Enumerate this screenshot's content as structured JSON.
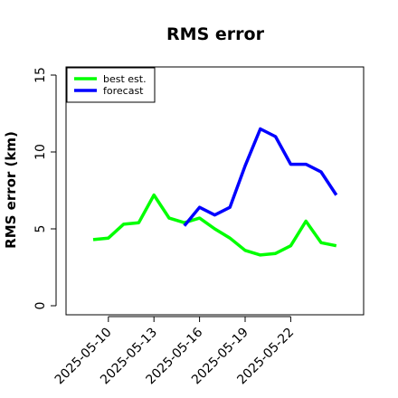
{
  "chart_data": {
    "type": "line",
    "title": "RMS error",
    "xlabel": "",
    "ylabel": "RMS error (km)",
    "x": [
      "2025-05-09",
      "2025-05-10",
      "2025-05-11",
      "2025-05-12",
      "2025-05-13",
      "2025-05-14",
      "2025-05-15",
      "2025-05-16",
      "2025-05-17",
      "2025-05-18",
      "2025-05-19",
      "2025-05-20",
      "2025-05-21",
      "2025-05-22",
      "2025-05-23",
      "2025-05-24",
      "2025-05-25"
    ],
    "x_tick_labels": [
      "2025-05-10",
      "2025-05-13",
      "2025-05-16",
      "2025-05-19",
      "2025-05-22"
    ],
    "ylim": [
      0,
      15
    ],
    "y_ticks": [
      0,
      5,
      10,
      15
    ],
    "grid": false,
    "legend_position": "top-left",
    "series": [
      {
        "name": "best est.",
        "color": "#00ff00",
        "values": [
          4.3,
          4.4,
          5.3,
          5.4,
          7.2,
          5.7,
          5.4,
          5.7,
          5.0,
          4.4,
          3.6,
          3.3,
          3.4,
          3.9,
          5.5,
          4.1,
          3.9
        ]
      },
      {
        "name": "forecast",
        "color": "#0000ff",
        "values": [
          null,
          null,
          null,
          null,
          null,
          null,
          5.2,
          6.4,
          5.9,
          6.4,
          9.1,
          11.5,
          11.0,
          9.2,
          9.2,
          8.7,
          7.2
        ]
      }
    ]
  }
}
